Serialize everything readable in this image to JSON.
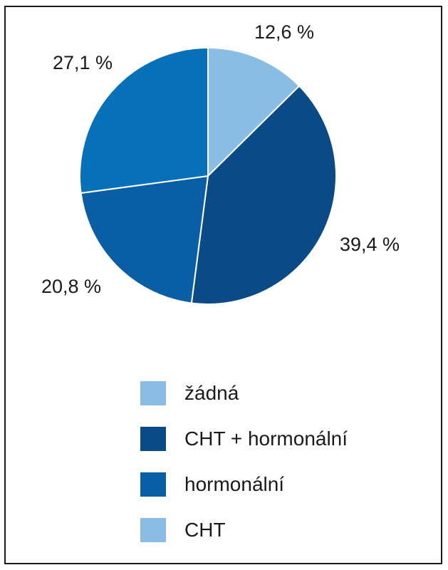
{
  "chart_data": {
    "type": "pie",
    "slices": [
      {
        "value": 12.6,
        "label": "12,6 %",
        "color": "#89bde3"
      },
      {
        "value": 39.4,
        "label": "39,4 %",
        "color": "#0a4a86"
      },
      {
        "value": 20.8,
        "label": "20,8 %",
        "color": "#0a5ea6"
      },
      {
        "value": 27.1,
        "label": "27,1 %",
        "color": "#0670b8"
      }
    ],
    "legend": {
      "placement": "bottom",
      "items": [
        {
          "label": "žádná",
          "color": "#89bde3"
        },
        {
          "label": "CHT + hormonální",
          "color": "#0a4a86"
        },
        {
          "label": "hormonální",
          "color": "#0a5ea6"
        },
        {
          "label": "CHT",
          "color": "#89bde3"
        }
      ]
    },
    "start_angle": "12 o'clock",
    "direction": "clockwise"
  }
}
